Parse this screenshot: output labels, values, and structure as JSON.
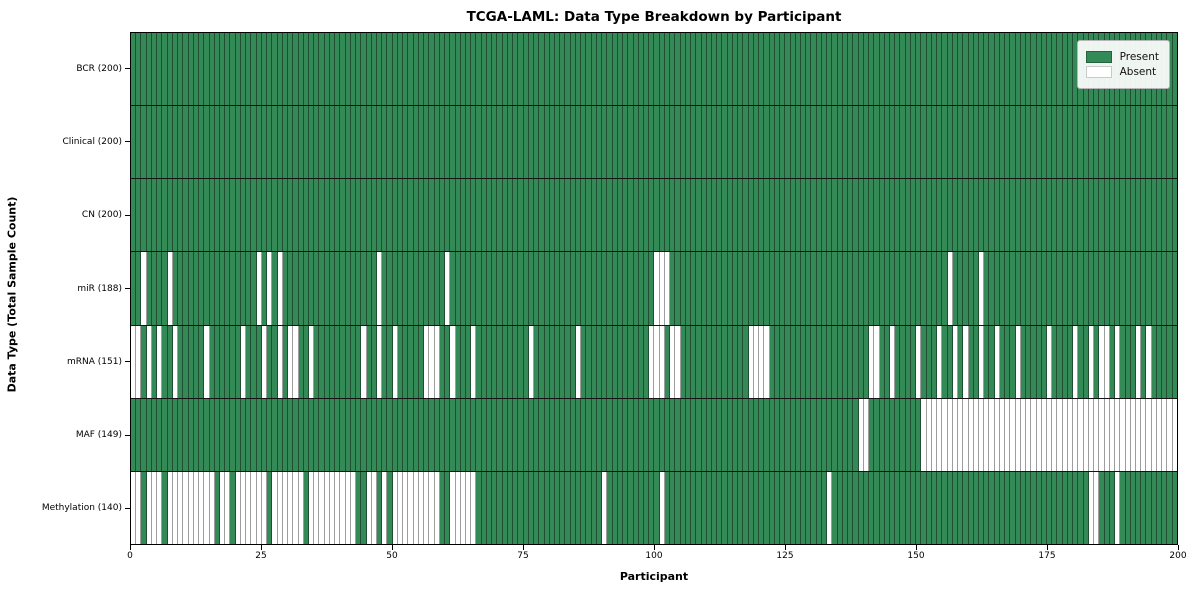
{
  "title": "TCGA-LAML: Data Type Breakdown by Participant",
  "x_axis": {
    "label": "Participant",
    "ticks": [
      0,
      25,
      50,
      75,
      100,
      125,
      150,
      175,
      200
    ]
  },
  "y_axis": {
    "label": "Data Type (Total Sample Count)"
  },
  "legend": {
    "present_label": "Present",
    "absent_label": "Absent"
  },
  "colors": {
    "present": "#338a57",
    "absent": "#ffffff",
    "frame": "#000000"
  },
  "chart_data": {
    "type": "heatmap",
    "title": "TCGA-LAML: Data Type Breakdown by Participant",
    "xlabel": "Participant",
    "ylabel": "Data Type (Total Sample Count)",
    "n_participants": 200,
    "x_range": [
      0,
      200
    ],
    "x_ticks": [
      0,
      25,
      50,
      75,
      100,
      125,
      150,
      175,
      200
    ],
    "grid": false,
    "legend_position": "upper-right",
    "legend_entries": [
      {
        "label": "Present",
        "color": "#338a57"
      },
      {
        "label": "Absent",
        "color": "#ffffff"
      }
    ],
    "rows": [
      {
        "label": "BCR (200)",
        "data_type": "BCR",
        "present_count": 200,
        "absent_participants": []
      },
      {
        "label": "Clinical (200)",
        "data_type": "Clinical",
        "present_count": 200,
        "absent_participants": []
      },
      {
        "label": "CN (200)",
        "data_type": "CN",
        "present_count": 200,
        "absent_participants": []
      },
      {
        "label": "miR (188)",
        "data_type": "miR",
        "present_count": 188,
        "absent_participants": [
          2,
          7,
          24,
          26,
          28,
          47,
          60,
          100,
          101,
          102,
          156,
          162
        ]
      },
      {
        "label": "mRNA (151)",
        "data_type": "mRNA",
        "present_count": 151,
        "absent_participants": [
          0,
          1,
          3,
          5,
          8,
          14,
          21,
          25,
          28,
          30,
          31,
          34,
          44,
          47,
          50,
          56,
          57,
          58,
          61,
          65,
          76,
          85,
          99,
          100,
          101,
          103,
          104,
          118,
          119,
          120,
          121,
          141,
          142,
          145,
          150,
          154,
          157,
          159,
          162,
          165,
          169,
          175,
          180,
          183,
          185,
          186,
          188,
          192,
          194
        ]
      },
      {
        "label": "MAF (149)",
        "data_type": "MAF",
        "present_count": 149,
        "absent_participants": [
          139,
          140,
          151,
          152,
          153,
          154,
          155,
          156,
          157,
          158,
          159,
          160,
          161,
          162,
          163,
          164,
          165,
          166,
          167,
          168,
          169,
          170,
          171,
          172,
          173,
          174,
          175,
          176,
          177,
          178,
          179,
          180,
          181,
          182,
          183,
          184,
          185,
          186,
          187,
          188,
          189,
          190,
          191,
          192,
          193,
          194,
          195,
          196,
          197,
          198,
          199
        ]
      },
      {
        "label": "Methylation (140)",
        "data_type": "Methylation",
        "present_count": 140,
        "absent_participants": [
          0,
          1,
          3,
          4,
          5,
          7,
          8,
          9,
          10,
          11,
          12,
          13,
          14,
          15,
          17,
          18,
          20,
          21,
          22,
          23,
          24,
          25,
          27,
          28,
          29,
          30,
          31,
          32,
          34,
          35,
          36,
          37,
          38,
          39,
          40,
          41,
          42,
          45,
          46,
          48,
          50,
          51,
          52,
          53,
          54,
          55,
          56,
          57,
          58,
          61,
          62,
          63,
          64,
          65,
          90,
          101,
          133,
          183,
          184,
          188
        ]
      }
    ]
  }
}
